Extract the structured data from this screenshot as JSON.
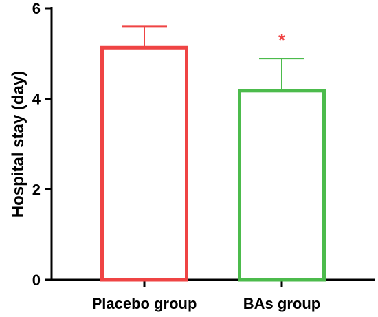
{
  "chart_data": {
    "type": "bar",
    "categories": [
      "Placebo group",
      "BAs group"
    ],
    "values": [
      5.13,
      4.18
    ],
    "errors": [
      0.47,
      0.71
    ],
    "xlabel": "",
    "ylabel": "Hospital stay (day)",
    "ylim": [
      0,
      6
    ],
    "yticks": [
      "0",
      "2",
      "4",
      "6"
    ],
    "grid": false,
    "colors": [
      "#EF4444",
      "#4CBB4C"
    ],
    "annotations": [
      {
        "category": "BAs group",
        "text": "*",
        "color": "#EF4444"
      }
    ]
  }
}
